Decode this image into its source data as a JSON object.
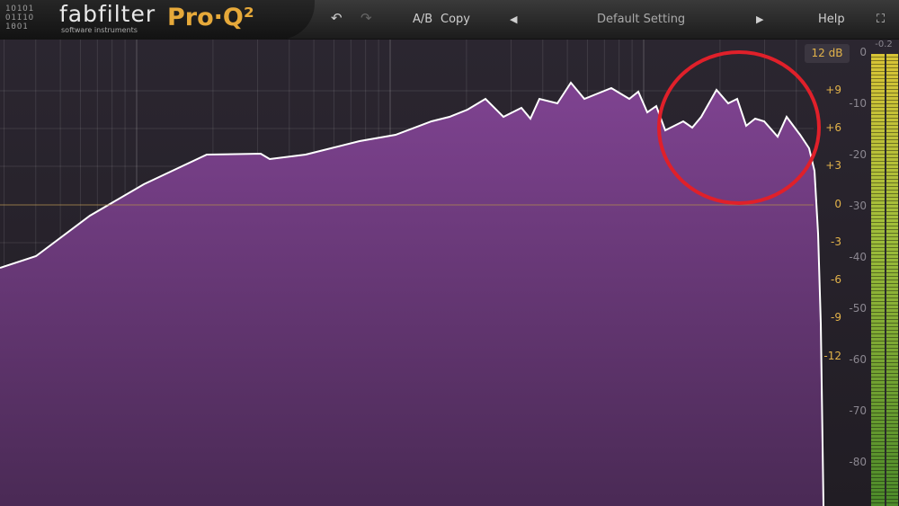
{
  "header": {
    "brand": "fabfilter",
    "brand_sub": "software instruments",
    "product": "Pro·Q²",
    "ab_label": "A/B",
    "copy_label": "Copy",
    "preset": "Default Setting",
    "help_label": "Help"
  },
  "range_button": "12 dB",
  "gain_scale": [
    "+9",
    "+6",
    "+3",
    "0",
    "-3",
    "-6",
    "-9",
    "-12"
  ],
  "db_scale": [
    "0",
    "-10",
    "-20",
    "-30",
    "-40",
    "-50",
    "-60",
    "-70",
    "-80"
  ],
  "meter_peak": "-0.2",
  "colors": {
    "spectrum_fill": "#7a3f8c",
    "spectrum_line": "#ffffff",
    "annotation": "#e0202a",
    "gain_labels": "#e3b34a"
  }
}
